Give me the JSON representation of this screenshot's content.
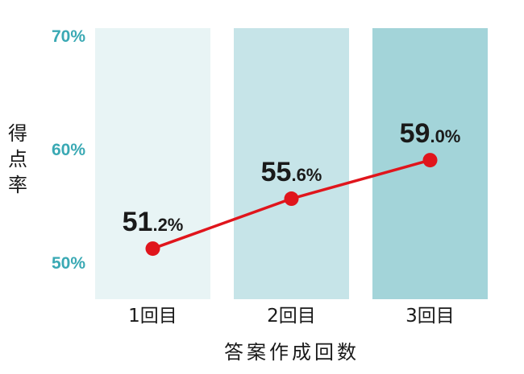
{
  "chart_data": {
    "type": "line",
    "categories": [
      "1回目",
      "2回目",
      "3回目"
    ],
    "values": [
      51.2,
      55.6,
      59.0
    ],
    "data_labels": [
      {
        "int": "51",
        "dec": ".2%"
      },
      {
        "int": "55",
        "dec": ".6%"
      },
      {
        "int": "59",
        "dec": ".0%"
      }
    ],
    "xlabel": "答案作成回数",
    "ylabel": "得点率",
    "ylim": [
      47,
      70
    ],
    "y_ticks": [
      {
        "value": 70,
        "label": "70%"
      },
      {
        "value": 60,
        "label": "60%"
      },
      {
        "value": 50,
        "label": "50%"
      }
    ],
    "grid": false,
    "legend": "none",
    "colors": {
      "line": "#e0151c",
      "marker": "#e0151c",
      "column_backgrounds": [
        "#e8f4f5",
        "#c6e4e8",
        "#a3d4d9"
      ],
      "y_tick_text": "#3aa9b4",
      "text": "#1a1a1a"
    }
  }
}
